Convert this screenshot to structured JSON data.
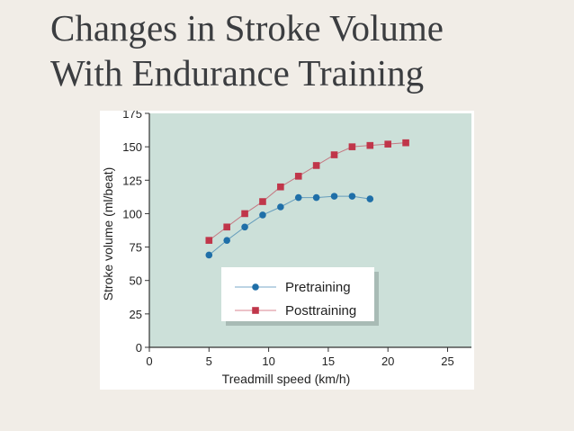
{
  "slide": {
    "title_line1": "Changes in Stroke Volume",
    "title_line2": "With Endurance Training"
  },
  "colors": {
    "plot_bg": "#cce0d9",
    "pretraining": "#1f6fa8",
    "posttraining": "#c0364a",
    "axis": "#333333"
  },
  "chart_data": {
    "type": "line",
    "xlabel": "Treadmill speed (km/h)",
    "ylabel": "Stroke volume (ml/beat)",
    "xlim": [
      0,
      27
    ],
    "ylim": [
      0,
      175
    ],
    "x_ticks": [
      0,
      5,
      10,
      15,
      20,
      25
    ],
    "y_ticks": [
      0,
      25,
      50,
      75,
      100,
      125,
      150,
      175
    ],
    "grid": false,
    "legend_position": "lower-center",
    "series": [
      {
        "name": "Pretraining",
        "marker": "circle",
        "color": "#1f6fa8",
        "x": [
          5,
          6.5,
          8,
          9.5,
          11,
          12.5,
          14,
          15.5,
          17,
          18.5
        ],
        "y": [
          69,
          80,
          90,
          99,
          105,
          112,
          112,
          113,
          113,
          111
        ]
      },
      {
        "name": "Posttraining",
        "marker": "square",
        "color": "#c0364a",
        "x": [
          5,
          6.5,
          8,
          9.5,
          11,
          12.5,
          14,
          15.5,
          17,
          18.5,
          20,
          21.5
        ],
        "y": [
          80,
          90,
          100,
          109,
          120,
          128,
          136,
          144,
          150,
          151,
          152,
          153
        ]
      }
    ]
  }
}
